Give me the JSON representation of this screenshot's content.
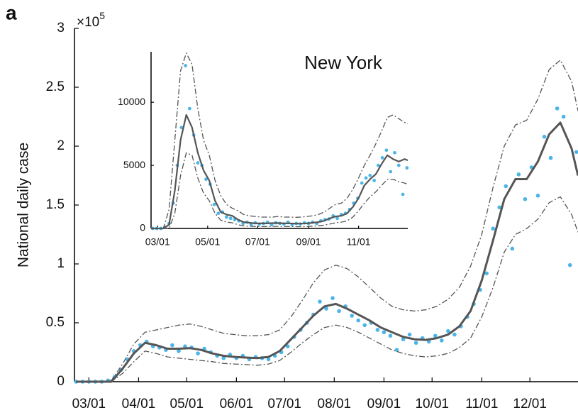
{
  "panel_label": "a",
  "chart_data": [
    {
      "type": "line",
      "y_label": "National daily case",
      "y_multiplier": {
        "base": "×10",
        "exponent": "5"
      },
      "xlim": [
        "02/21",
        "12/31"
      ],
      "xticks": [
        "03/01",
        "04/01",
        "05/01",
        "06/01",
        "07/01",
        "08/01",
        "09/01",
        "10/01",
        "11/01",
        "12/01"
      ],
      "ylim": [
        0,
        3
      ],
      "yticks": [
        0,
        0.5,
        1,
        1.5,
        2,
        2.5,
        3
      ],
      "series": [
        {
          "style": "markers",
          "color": "#4cb5e8",
          "x": [
            "02/22",
            "02/26",
            "03/01",
            "03/05",
            "03/09",
            "03/13",
            "03/17",
            "03/21",
            "03/25",
            "03/29",
            "04/02",
            "04/06",
            "04/10",
            "04/14",
            "04/18",
            "04/22",
            "04/26",
            "04/30",
            "05/04",
            "05/08",
            "05/12",
            "05/16",
            "05/20",
            "05/24",
            "05/28",
            "06/01",
            "06/05",
            "06/09",
            "06/13",
            "06/17",
            "06/21",
            "06/25",
            "06/29",
            "07/03",
            "07/07",
            "07/11",
            "07/15",
            "07/19",
            "07/23",
            "07/27",
            "07/31",
            "08/04",
            "08/08",
            "08/12",
            "08/16",
            "08/20",
            "08/24",
            "08/28",
            "09/01",
            "09/05",
            "09/09",
            "09/13",
            "09/17",
            "09/21",
            "09/25",
            "09/29",
            "10/03",
            "10/07",
            "10/11",
            "10/15",
            "10/19",
            "10/23",
            "10/27",
            "10/31",
            "11/04",
            "11/08",
            "11/12",
            "11/16",
            "11/20",
            "11/24",
            "11/28",
            "12/02",
            "12/06",
            "12/10",
            "12/14",
            "12/18",
            "12/22",
            "12/26",
            "12/30"
          ],
          "values": [
            0,
            0,
            0,
            0,
            0,
            0.01,
            0.04,
            0.1,
            0.19,
            0.26,
            0.31,
            0.34,
            0.3,
            0.29,
            0.27,
            0.31,
            0.26,
            0.3,
            0.29,
            0.24,
            0.28,
            0.25,
            0.22,
            0.2,
            0.23,
            0.2,
            0.22,
            0.19,
            0.21,
            0.2,
            0.19,
            0.22,
            0.25,
            0.3,
            0.38,
            0.44,
            0.5,
            0.57,
            0.68,
            0.62,
            0.71,
            0.6,
            0.64,
            0.56,
            0.52,
            0.48,
            0.5,
            0.44,
            0.42,
            0.39,
            0.27,
            0.36,
            0.4,
            0.33,
            0.37,
            0.34,
            0.39,
            0.35,
            0.43,
            0.4,
            0.47,
            0.55,
            0.66,
            0.78,
            0.92,
            1.3,
            1.48,
            1.66,
            1.13,
            1.76,
            1.55,
            1.82,
            1.58,
            2.08,
            1.9,
            2.32,
            2.25,
            0.99,
            1.95
          ]
        },
        {
          "style": "dashdot",
          "color": "#555555",
          "x": [
            "02/22",
            "03/01",
            "03/08",
            "03/15",
            "03/22",
            "03/29",
            "04/05",
            "04/12",
            "04/19",
            "04/26",
            "05/03",
            "05/10",
            "05/17",
            "05/24",
            "05/31",
            "06/07",
            "06/14",
            "06/21",
            "06/28",
            "07/05",
            "07/12",
            "07/19",
            "07/26",
            "08/02",
            "08/09",
            "08/16",
            "08/23",
            "08/30",
            "09/06",
            "09/13",
            "09/20",
            "09/27",
            "10/04",
            "10/11",
            "10/18",
            "10/25",
            "11/01",
            "11/08",
            "11/15",
            "11/22",
            "11/29",
            "12/06",
            "12/13",
            "12/20",
            "12/27",
            "12/31"
          ],
          "values": [
            0,
            0,
            0,
            0.01,
            0.15,
            0.32,
            0.42,
            0.44,
            0.46,
            0.48,
            0.49,
            0.47,
            0.44,
            0.41,
            0.4,
            0.39,
            0.39,
            0.4,
            0.44,
            0.55,
            0.69,
            0.84,
            0.95,
            0.99,
            0.96,
            0.89,
            0.8,
            0.71,
            0.64,
            0.61,
            0.6,
            0.61,
            0.64,
            0.7,
            0.8,
            0.98,
            1.25,
            1.65,
            2.0,
            2.18,
            2.22,
            2.4,
            2.65,
            2.73,
            2.55,
            2.3
          ]
        },
        {
          "style": "dashdot",
          "color": "#555555",
          "x": [
            "02/22",
            "03/01",
            "03/08",
            "03/15",
            "03/22",
            "03/29",
            "04/05",
            "04/12",
            "04/19",
            "04/26",
            "05/03",
            "05/10",
            "05/17",
            "05/24",
            "05/31",
            "06/07",
            "06/14",
            "06/21",
            "06/28",
            "07/05",
            "07/12",
            "07/19",
            "07/26",
            "08/02",
            "08/09",
            "08/16",
            "08/23",
            "08/30",
            "09/06",
            "09/13",
            "09/20",
            "09/27",
            "10/04",
            "10/11",
            "10/18",
            "10/25",
            "11/01",
            "11/08",
            "11/15",
            "11/22",
            "11/29",
            "12/06",
            "12/13",
            "12/20",
            "12/27",
            "12/31"
          ],
          "values": [
            0,
            0,
            0,
            0,
            0.07,
            0.17,
            0.26,
            0.24,
            0.21,
            0.2,
            0.19,
            0.18,
            0.17,
            0.155,
            0.15,
            0.145,
            0.14,
            0.15,
            0.18,
            0.25,
            0.33,
            0.4,
            0.46,
            0.48,
            0.46,
            0.42,
            0.37,
            0.32,
            0.27,
            0.24,
            0.22,
            0.21,
            0.22,
            0.24,
            0.29,
            0.37,
            0.55,
            0.8,
            1.1,
            1.25,
            1.3,
            1.38,
            1.52,
            1.57,
            1.42,
            1.27
          ]
        },
        {
          "style": "solid",
          "color": "#555555",
          "x": [
            "02/22",
            "03/01",
            "03/08",
            "03/15",
            "03/22",
            "03/29",
            "04/05",
            "04/12",
            "04/19",
            "04/26",
            "05/03",
            "05/10",
            "05/17",
            "05/24",
            "05/31",
            "06/07",
            "06/14",
            "06/21",
            "06/28",
            "07/05",
            "07/12",
            "07/19",
            "07/26",
            "08/02",
            "08/09",
            "08/16",
            "08/23",
            "08/30",
            "09/06",
            "09/13",
            "09/20",
            "09/27",
            "10/04",
            "10/11",
            "10/18",
            "10/25",
            "11/01",
            "11/08",
            "11/15",
            "11/22",
            "11/29",
            "12/06",
            "12/13",
            "12/20",
            "12/27",
            "12/31"
          ],
          "values": [
            0,
            0,
            0,
            0,
            0.11,
            0.24,
            0.33,
            0.31,
            0.28,
            0.28,
            0.285,
            0.27,
            0.24,
            0.22,
            0.21,
            0.205,
            0.2,
            0.21,
            0.26,
            0.36,
            0.46,
            0.56,
            0.64,
            0.66,
            0.62,
            0.57,
            0.52,
            0.46,
            0.42,
            0.38,
            0.36,
            0.355,
            0.37,
            0.4,
            0.47,
            0.6,
            0.86,
            1.2,
            1.55,
            1.72,
            1.72,
            1.87,
            2.1,
            2.2,
            1.98,
            1.75
          ]
        }
      ]
    },
    {
      "type": "line",
      "title": "New York",
      "xlim": [
        "02/22",
        "12/31"
      ],
      "xticks": [
        "03/01",
        "05/01",
        "07/01",
        "09/01",
        "11/01"
      ],
      "ylim": [
        0,
        14000
      ],
      "yticks": [
        0,
        5000,
        10000
      ],
      "series": [
        {
          "style": "markers",
          "color": "#4cb5e8",
          "x": [
            "02/24",
            "02/29",
            "03/05",
            "03/10",
            "03/15",
            "03/20",
            "03/25",
            "03/30",
            "04/04",
            "04/09",
            "04/14",
            "04/19",
            "04/24",
            "04/29",
            "05/04",
            "05/09",
            "05/14",
            "05/19",
            "05/24",
            "05/29",
            "06/03",
            "06/08",
            "06/13",
            "06/18",
            "06/23",
            "06/28",
            "07/03",
            "07/08",
            "07/13",
            "07/18",
            "07/23",
            "07/28",
            "08/02",
            "08/07",
            "08/12",
            "08/17",
            "08/22",
            "08/27",
            "09/01",
            "09/06",
            "09/11",
            "09/16",
            "09/21",
            "09/26",
            "10/01",
            "10/06",
            "10/11",
            "10/16",
            "10/21",
            "10/26",
            "10/31",
            "11/05",
            "11/10",
            "11/15",
            "11/20",
            "11/25",
            "11/30",
            "12/05",
            "12/10",
            "12/15",
            "12/20",
            "12/25",
            "12/30"
          ],
          "values": [
            0,
            0,
            0,
            100,
            400,
            2000,
            5000,
            8000,
            12900,
            9500,
            7400,
            5200,
            5000,
            3900,
            3500,
            1900,
            1200,
            1300,
            900,
            800,
            700,
            600,
            400,
            500,
            300,
            450,
            350,
            400,
            500,
            300,
            450,
            400,
            350,
            500,
            300,
            400,
            350,
            450,
            400,
            500,
            400,
            600,
            700,
            750,
            1000,
            800,
            1100,
            1200,
            1500,
            2000,
            2400,
            3600,
            4000,
            4200,
            3800,
            5000,
            5600,
            6200,
            4500,
            6000,
            5000,
            2700,
            4800
          ]
        },
        {
          "style": "dashdot",
          "color": "#555555",
          "x": [
            "02/22",
            "03/01",
            "03/08",
            "03/15",
            "03/22",
            "03/29",
            "04/05",
            "04/12",
            "04/19",
            "04/26",
            "05/03",
            "05/10",
            "05/17",
            "05/24",
            "05/31",
            "06/07",
            "06/14",
            "06/21",
            "06/28",
            "07/05",
            "07/12",
            "07/19",
            "07/26",
            "08/02",
            "08/09",
            "08/16",
            "08/23",
            "08/30",
            "09/06",
            "09/13",
            "09/20",
            "09/27",
            "10/04",
            "10/11",
            "10/18",
            "10/25",
            "11/01",
            "11/08",
            "11/15",
            "11/22",
            "11/29",
            "12/06",
            "12/13",
            "12/20",
            "12/27",
            "12/31"
          ],
          "values": [
            0,
            0,
            0,
            1500,
            7000,
            12500,
            13900,
            13000,
            9500,
            7000,
            5800,
            3800,
            2600,
            1900,
            1600,
            1400,
            1100,
            1000,
            950,
            900,
            900,
            900,
            950,
            900,
            900,
            880,
            900,
            950,
            1000,
            1100,
            1300,
            1600,
            1900,
            2000,
            2400,
            3100,
            4000,
            5000,
            5800,
            6700,
            7700,
            8800,
            9000,
            8700,
            8400,
            8300
          ]
        },
        {
          "style": "dashdot",
          "color": "#555555",
          "x": [
            "02/22",
            "03/01",
            "03/08",
            "03/15",
            "03/22",
            "03/29",
            "04/05",
            "04/12",
            "04/19",
            "04/26",
            "05/03",
            "05/10",
            "05/17",
            "05/24",
            "05/31",
            "06/07",
            "06/14",
            "06/21",
            "06/28",
            "07/05",
            "07/12",
            "07/19",
            "07/26",
            "08/02",
            "08/09",
            "08/16",
            "08/23",
            "08/30",
            "09/06",
            "09/13",
            "09/20",
            "09/27",
            "10/04",
            "10/11",
            "10/18",
            "10/25",
            "11/01",
            "11/08",
            "11/15",
            "11/22",
            "11/29",
            "12/06",
            "12/13",
            "12/20",
            "12/27",
            "12/31"
          ],
          "values": [
            0,
            0,
            0,
            0,
            1200,
            4200,
            6000,
            5800,
            4000,
            2800,
            2200,
            1200,
            650,
            500,
            450,
            300,
            200,
            180,
            150,
            150,
            150,
            160,
            170,
            150,
            150,
            140,
            140,
            150,
            180,
            210,
            260,
            350,
            450,
            500,
            600,
            900,
            1400,
            2000,
            2500,
            2900,
            3400,
            3900,
            3900,
            3700,
            3600,
            3500
          ]
        },
        {
          "style": "solid",
          "color": "#555555",
          "x": [
            "02/22",
            "03/01",
            "03/08",
            "03/15",
            "03/22",
            "03/29",
            "04/05",
            "04/12",
            "04/19",
            "04/26",
            "05/03",
            "05/10",
            "05/17",
            "05/24",
            "05/31",
            "06/07",
            "06/14",
            "06/21",
            "06/28",
            "07/05",
            "07/12",
            "07/19",
            "07/26",
            "08/02",
            "08/09",
            "08/16",
            "08/23",
            "08/30",
            "09/06",
            "09/13",
            "09/20",
            "09/27",
            "10/04",
            "10/11",
            "10/18",
            "10/25",
            "11/01",
            "11/08",
            "11/15",
            "11/22",
            "11/29",
            "12/06",
            "12/13",
            "12/20",
            "12/27",
            "12/31"
          ],
          "values": [
            0,
            0,
            0,
            300,
            3000,
            7000,
            9000,
            8000,
            6000,
            4600,
            3800,
            2200,
            1300,
            1100,
            1000,
            700,
            500,
            450,
            400,
            400,
            400,
            420,
            430,
            400,
            400,
            380,
            380,
            400,
            450,
            500,
            600,
            800,
            950,
            1000,
            1200,
            1700,
            2400,
            3400,
            3900,
            4300,
            5100,
            5800,
            5500,
            5300,
            5500,
            5400
          ]
        }
      ]
    }
  ]
}
